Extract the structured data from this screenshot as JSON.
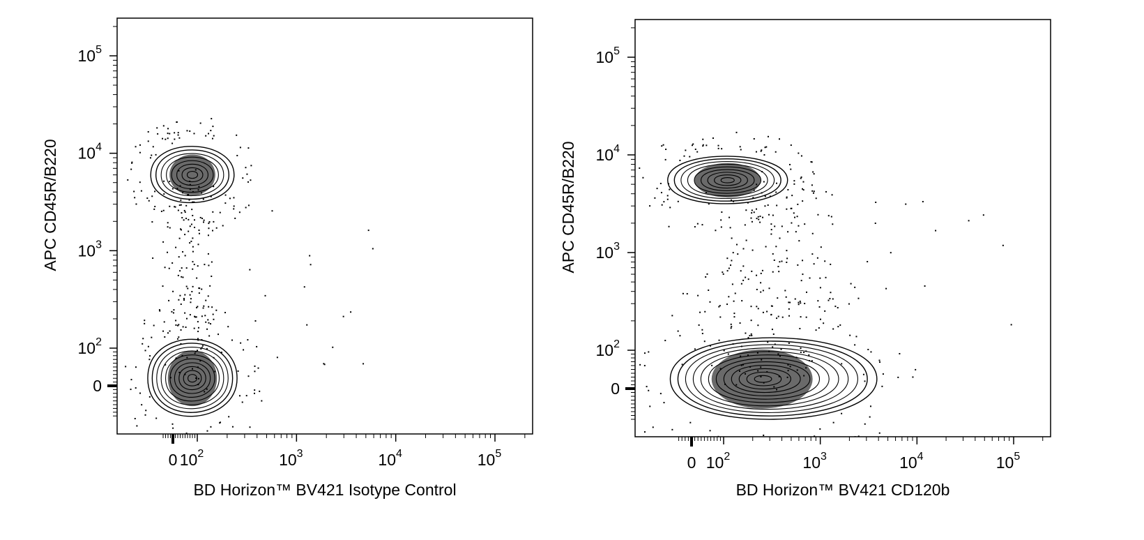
{
  "chart_data": [
    {
      "type": "contour",
      "xlabel": "BD Horizon™ BV421 Isotype Control",
      "ylabel": "APC CD45R/B220",
      "scale": "biexponential",
      "xlim": [
        -50,
        250000
      ],
      "ylim": [
        -100,
        250000
      ],
      "x_ticks": [
        {
          "value": 0,
          "base": "0",
          "exp": ""
        },
        {
          "value": 100,
          "base": "10",
          "exp": "2"
        },
        {
          "value": 1000,
          "base": "10",
          "exp": "3"
        },
        {
          "value": 10000,
          "base": "10",
          "exp": "4"
        },
        {
          "value": 100000,
          "base": "10",
          "exp": "5"
        }
      ],
      "y_ticks": [
        {
          "value": 0,
          "base": "0",
          "exp": ""
        },
        {
          "value": 100,
          "base": "10",
          "exp": "2"
        },
        {
          "value": 1000,
          "base": "10",
          "exp": "3"
        },
        {
          "value": 10000,
          "base": "10",
          "exp": "4"
        },
        {
          "value": 100000,
          "base": "10",
          "exp": "5"
        }
      ],
      "populations": [
        {
          "center_x": 80,
          "center_y": 6000,
          "rings": 8,
          "sx": 0.42,
          "sy": 0.38
        },
        {
          "center_x": 80,
          "center_y": 20,
          "rings": 10,
          "sx": 0.45,
          "sy": 0.52
        }
      ]
    },
    {
      "type": "contour",
      "xlabel": "BD Horizon™ BV421 CD120b",
      "ylabel": "APC CD45R/B220",
      "scale": "biexponential",
      "xlim": [
        -50,
        250000
      ],
      "ylim": [
        -100,
        250000
      ],
      "x_ticks": [
        {
          "value": 0,
          "base": "0",
          "exp": ""
        },
        {
          "value": 100,
          "base": "10",
          "exp": "2"
        },
        {
          "value": 1000,
          "base": "10",
          "exp": "3"
        },
        {
          "value": 10000,
          "base": "10",
          "exp": "4"
        },
        {
          "value": 100000,
          "base": "10",
          "exp": "5"
        }
      ],
      "y_ticks": [
        {
          "value": 0,
          "base": "0",
          "exp": ""
        },
        {
          "value": 100,
          "base": "10",
          "exp": "2"
        },
        {
          "value": 1000,
          "base": "10",
          "exp": "3"
        },
        {
          "value": 10000,
          "base": "10",
          "exp": "4"
        },
        {
          "value": 100000,
          "base": "10",
          "exp": "5"
        }
      ],
      "populations": [
        {
          "center_x": 110,
          "center_y": 5500,
          "rings": 9,
          "sx": 0.62,
          "sy": 0.32
        },
        {
          "center_x": 250,
          "center_y": 25,
          "rings": 12,
          "sx": 0.95,
          "sy": 0.55
        }
      ]
    }
  ]
}
